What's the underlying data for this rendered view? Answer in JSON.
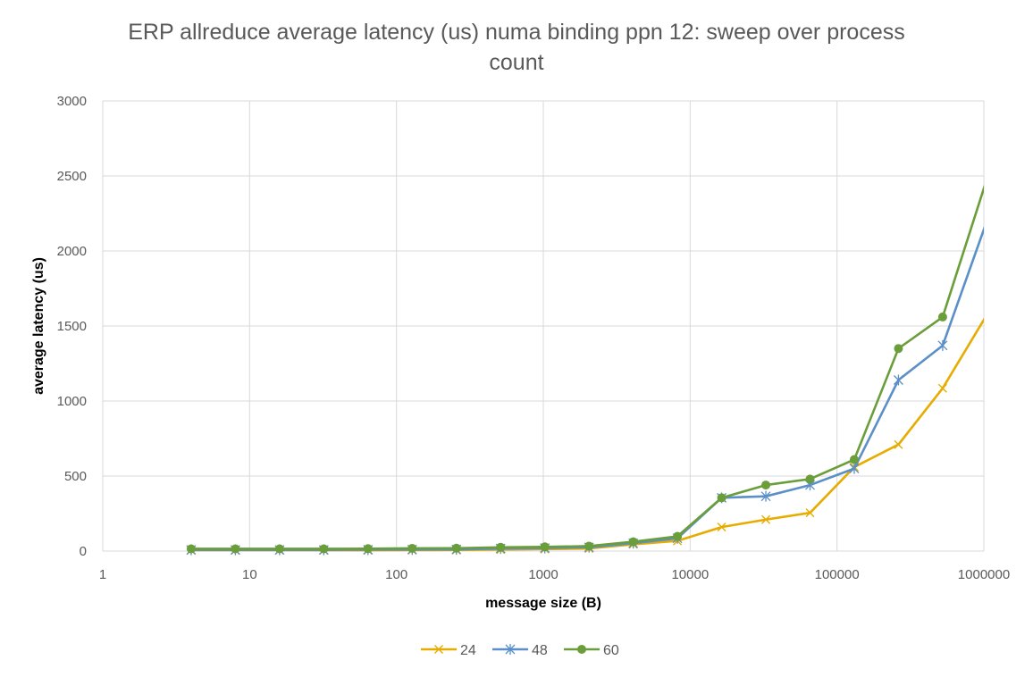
{
  "chart_data": {
    "type": "line",
    "title_lines": [
      "ERP allreduce average latency (us) numa binding ppn 12: sweep over process",
      "count"
    ],
    "xlabel": "message size (B)",
    "ylabel": "average latency (us)",
    "x_scale": "log10",
    "xlim": [
      1,
      1000000
    ],
    "ylim": [
      0,
      3000
    ],
    "x_ticks": [
      1,
      10,
      100,
      1000,
      10000,
      100000,
      1000000
    ],
    "x_tick_labels": [
      "1",
      "10",
      "100",
      "1000",
      "10000",
      "100000",
      "1000000"
    ],
    "y_ticks": [
      0,
      500,
      1000,
      1500,
      2000,
      2500,
      3000
    ],
    "y_tick_labels": [
      "0",
      "500",
      "1000",
      "1500",
      "2000",
      "2500",
      "3000"
    ],
    "grid": true,
    "legend_position": "bottom",
    "x": [
      4,
      8,
      16,
      32,
      64,
      128,
      256,
      512,
      1024,
      2048,
      4096,
      8192,
      16384,
      32768,
      65536,
      131072,
      262144,
      524288,
      1048576
    ],
    "series": [
      {
        "name": "24",
        "color": "#E6AC00",
        "marker": "x",
        "values": [
          5,
          5,
          5,
          5,
          5,
          6,
          7,
          10,
          13,
          17,
          45,
          68,
          160,
          210,
          255,
          560,
          710,
          1085,
          1575
        ]
      },
      {
        "name": "48",
        "color": "#5B8FC7",
        "marker": "star",
        "values": [
          8,
          8,
          8,
          8,
          9,
          10,
          11,
          17,
          20,
          25,
          52,
          85,
          355,
          365,
          440,
          550,
          1140,
          1370,
          2200
        ]
      },
      {
        "name": "60",
        "color": "#6A9E3A",
        "marker": "circle",
        "values": [
          15,
          15,
          15,
          15,
          16,
          18,
          19,
          25,
          28,
          33,
          62,
          98,
          355,
          440,
          480,
          610,
          1350,
          1560,
          2480
        ]
      }
    ]
  }
}
